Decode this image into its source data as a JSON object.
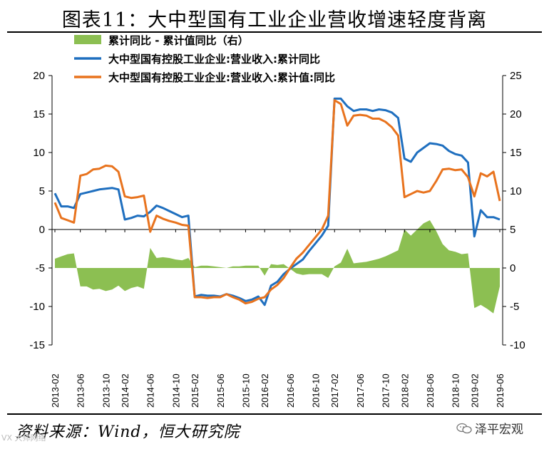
{
  "title": "图表11：大中型国有工业企业营收增速轻度背离",
  "source": "资料来源：Wind，恒大研究院",
  "brand": "泽平宏观",
  "watermark": "VX 大师网络",
  "colors": {
    "blue": "#1f6fbf",
    "orange": "#e8731e",
    "green": "#8cbf52",
    "axis": "#000000"
  },
  "chart_data": {
    "type": "line",
    "yleft": {
      "min": -15,
      "max": 20,
      "ticks": [
        -15,
        -10,
        -5,
        0,
        5,
        10,
        15,
        20
      ]
    },
    "yright": {
      "min": -10,
      "max": 25,
      "ticks": [
        -10,
        -5,
        0,
        5,
        10,
        15,
        20,
        25
      ]
    },
    "x_tick_labels": [
      "2013-02",
      "2013-06",
      "2013-10",
      "2014-02",
      "2014-06",
      "2014-10",
      "2015-02",
      "2015-06",
      "2015-10",
      "2016-02",
      "2016-06",
      "2016-10",
      "2017-02",
      "2017-06",
      "2017-10",
      "2018-02",
      "2018-06",
      "2018-10",
      "2019-02",
      "2019-06"
    ],
    "x": [
      "2013-02",
      "2013-03",
      "2013-04",
      "2013-05",
      "2013-06",
      "2013-07",
      "2013-08",
      "2013-09",
      "2013-10",
      "2013-11",
      "2013-12",
      "2014-02",
      "2014-03",
      "2014-04",
      "2014-05",
      "2014-06",
      "2014-07",
      "2014-08",
      "2014-09",
      "2014-10",
      "2014-11",
      "2014-12",
      "2015-02",
      "2015-03",
      "2015-04",
      "2015-05",
      "2015-06",
      "2015-07",
      "2015-08",
      "2015-09",
      "2015-10",
      "2015-11",
      "2015-12",
      "2016-02",
      "2016-03",
      "2016-04",
      "2016-05",
      "2016-06",
      "2016-07",
      "2016-08",
      "2016-09",
      "2016-10",
      "2016-11",
      "2016-12",
      "2017-02",
      "2017-03",
      "2017-04",
      "2017-05",
      "2017-06",
      "2017-07",
      "2017-08",
      "2017-09",
      "2017-10",
      "2017-11",
      "2017-12",
      "2018-02",
      "2018-03",
      "2018-04",
      "2018-05",
      "2018-06",
      "2018-07",
      "2018-08",
      "2018-09",
      "2018-10",
      "2018-11",
      "2018-12",
      "2019-02",
      "2019-03",
      "2019-04",
      "2019-05",
      "2019-06"
    ],
    "legend": [
      {
        "label": "累计同比 - 累计值同比（右）",
        "kind": "area",
        "color": "#8cbf52"
      },
      {
        "label": "大中型国有控股工业企业:营业收入:累计同比",
        "kind": "line",
        "color": "#1f6fbf"
      },
      {
        "label": "大中型国有控股工业企业:营业收入:累计值:同比",
        "kind": "line",
        "color": "#e8731e"
      }
    ],
    "series": [
      {
        "name": "大中型国有控股工业企业:营业收入:累计同比",
        "axis": "left",
        "color": "#1f6fbf",
        "values": [
          4.7,
          3.0,
          3.0,
          2.8,
          4.6,
          4.8,
          5.0,
          5.2,
          5.3,
          5.4,
          5.2,
          1.3,
          1.5,
          1.8,
          1.7,
          2.3,
          3.1,
          2.8,
          2.4,
          2.0,
          1.6,
          1.8,
          -8.7,
          -8.5,
          -8.6,
          -8.6,
          -8.7,
          -8.4,
          -8.6,
          -8.9,
          -9.3,
          -9.1,
          -8.7,
          -9.8,
          -7.3,
          -6.8,
          -5.8,
          -5.1,
          -4.5,
          -3.9,
          -2.8,
          -1.8,
          -0.8,
          0.5,
          17.0,
          17.0,
          16.0,
          15.4,
          15.6,
          15.6,
          15.4,
          15.6,
          15.5,
          15.2,
          14.5,
          9.2,
          8.8,
          10.0,
          10.6,
          11.2,
          11.1,
          10.9,
          10.2,
          9.8,
          9.6,
          8.7,
          -0.9,
          2.5,
          1.6,
          1.6,
          1.3
        ]
      },
      {
        "name": "大中型国有控股工业企业:营业收入:累计值:同比",
        "axis": "left",
        "color": "#e8731e",
        "values": [
          3.5,
          1.5,
          1.2,
          0.9,
          7.0,
          7.2,
          7.8,
          7.9,
          8.3,
          8.2,
          7.5,
          4.3,
          4.1,
          4.2,
          4.4,
          -0.3,
          1.8,
          1.4,
          1.1,
          0.9,
          0.6,
          0.5,
          -8.8,
          -8.8,
          -8.9,
          -8.8,
          -8.8,
          -8.4,
          -8.8,
          -9.1,
          -9.6,
          -9.4,
          -9.0,
          -8.8,
          -7.8,
          -7.2,
          -6.3,
          -5.0,
          -3.8,
          -3.0,
          -2.0,
          -1.0,
          0.0,
          1.8,
          16.8,
          16.3,
          13.5,
          14.8,
          14.9,
          14.8,
          14.4,
          14.4,
          14.0,
          13.3,
          12.2,
          4.2,
          4.6,
          5.0,
          4.8,
          5.0,
          6.3,
          7.8,
          7.9,
          7.7,
          7.8,
          6.8,
          4.3,
          7.3,
          6.9,
          7.5,
          3.7
        ]
      },
      {
        "name": "累计同比 - 累计值同比（右）",
        "axis": "right",
        "kind": "area",
        "color": "#8cbf52",
        "values": [
          1.2,
          1.5,
          1.8,
          1.9,
          -2.4,
          -2.4,
          -2.8,
          -2.7,
          -3.0,
          -2.8,
          -2.3,
          -3.0,
          -2.6,
          -2.4,
          -2.7,
          2.6,
          1.3,
          1.4,
          1.3,
          1.1,
          1.0,
          1.3,
          0.1,
          0.3,
          0.3,
          0.2,
          0.1,
          0.0,
          0.2,
          0.2,
          0.3,
          0.3,
          0.3,
          -1.0,
          0.5,
          0.4,
          0.5,
          -0.1,
          -0.7,
          -0.9,
          -0.8,
          -0.8,
          -0.8,
          -1.3,
          0.2,
          0.7,
          2.5,
          0.6,
          0.7,
          0.8,
          1.0,
          1.2,
          1.5,
          1.9,
          2.3,
          5.0,
          4.2,
          5.0,
          5.8,
          6.2,
          4.8,
          3.1,
          2.3,
          2.1,
          1.8,
          1.9,
          -5.2,
          -4.8,
          -5.3,
          -5.9,
          -2.4
        ]
      }
    ]
  }
}
